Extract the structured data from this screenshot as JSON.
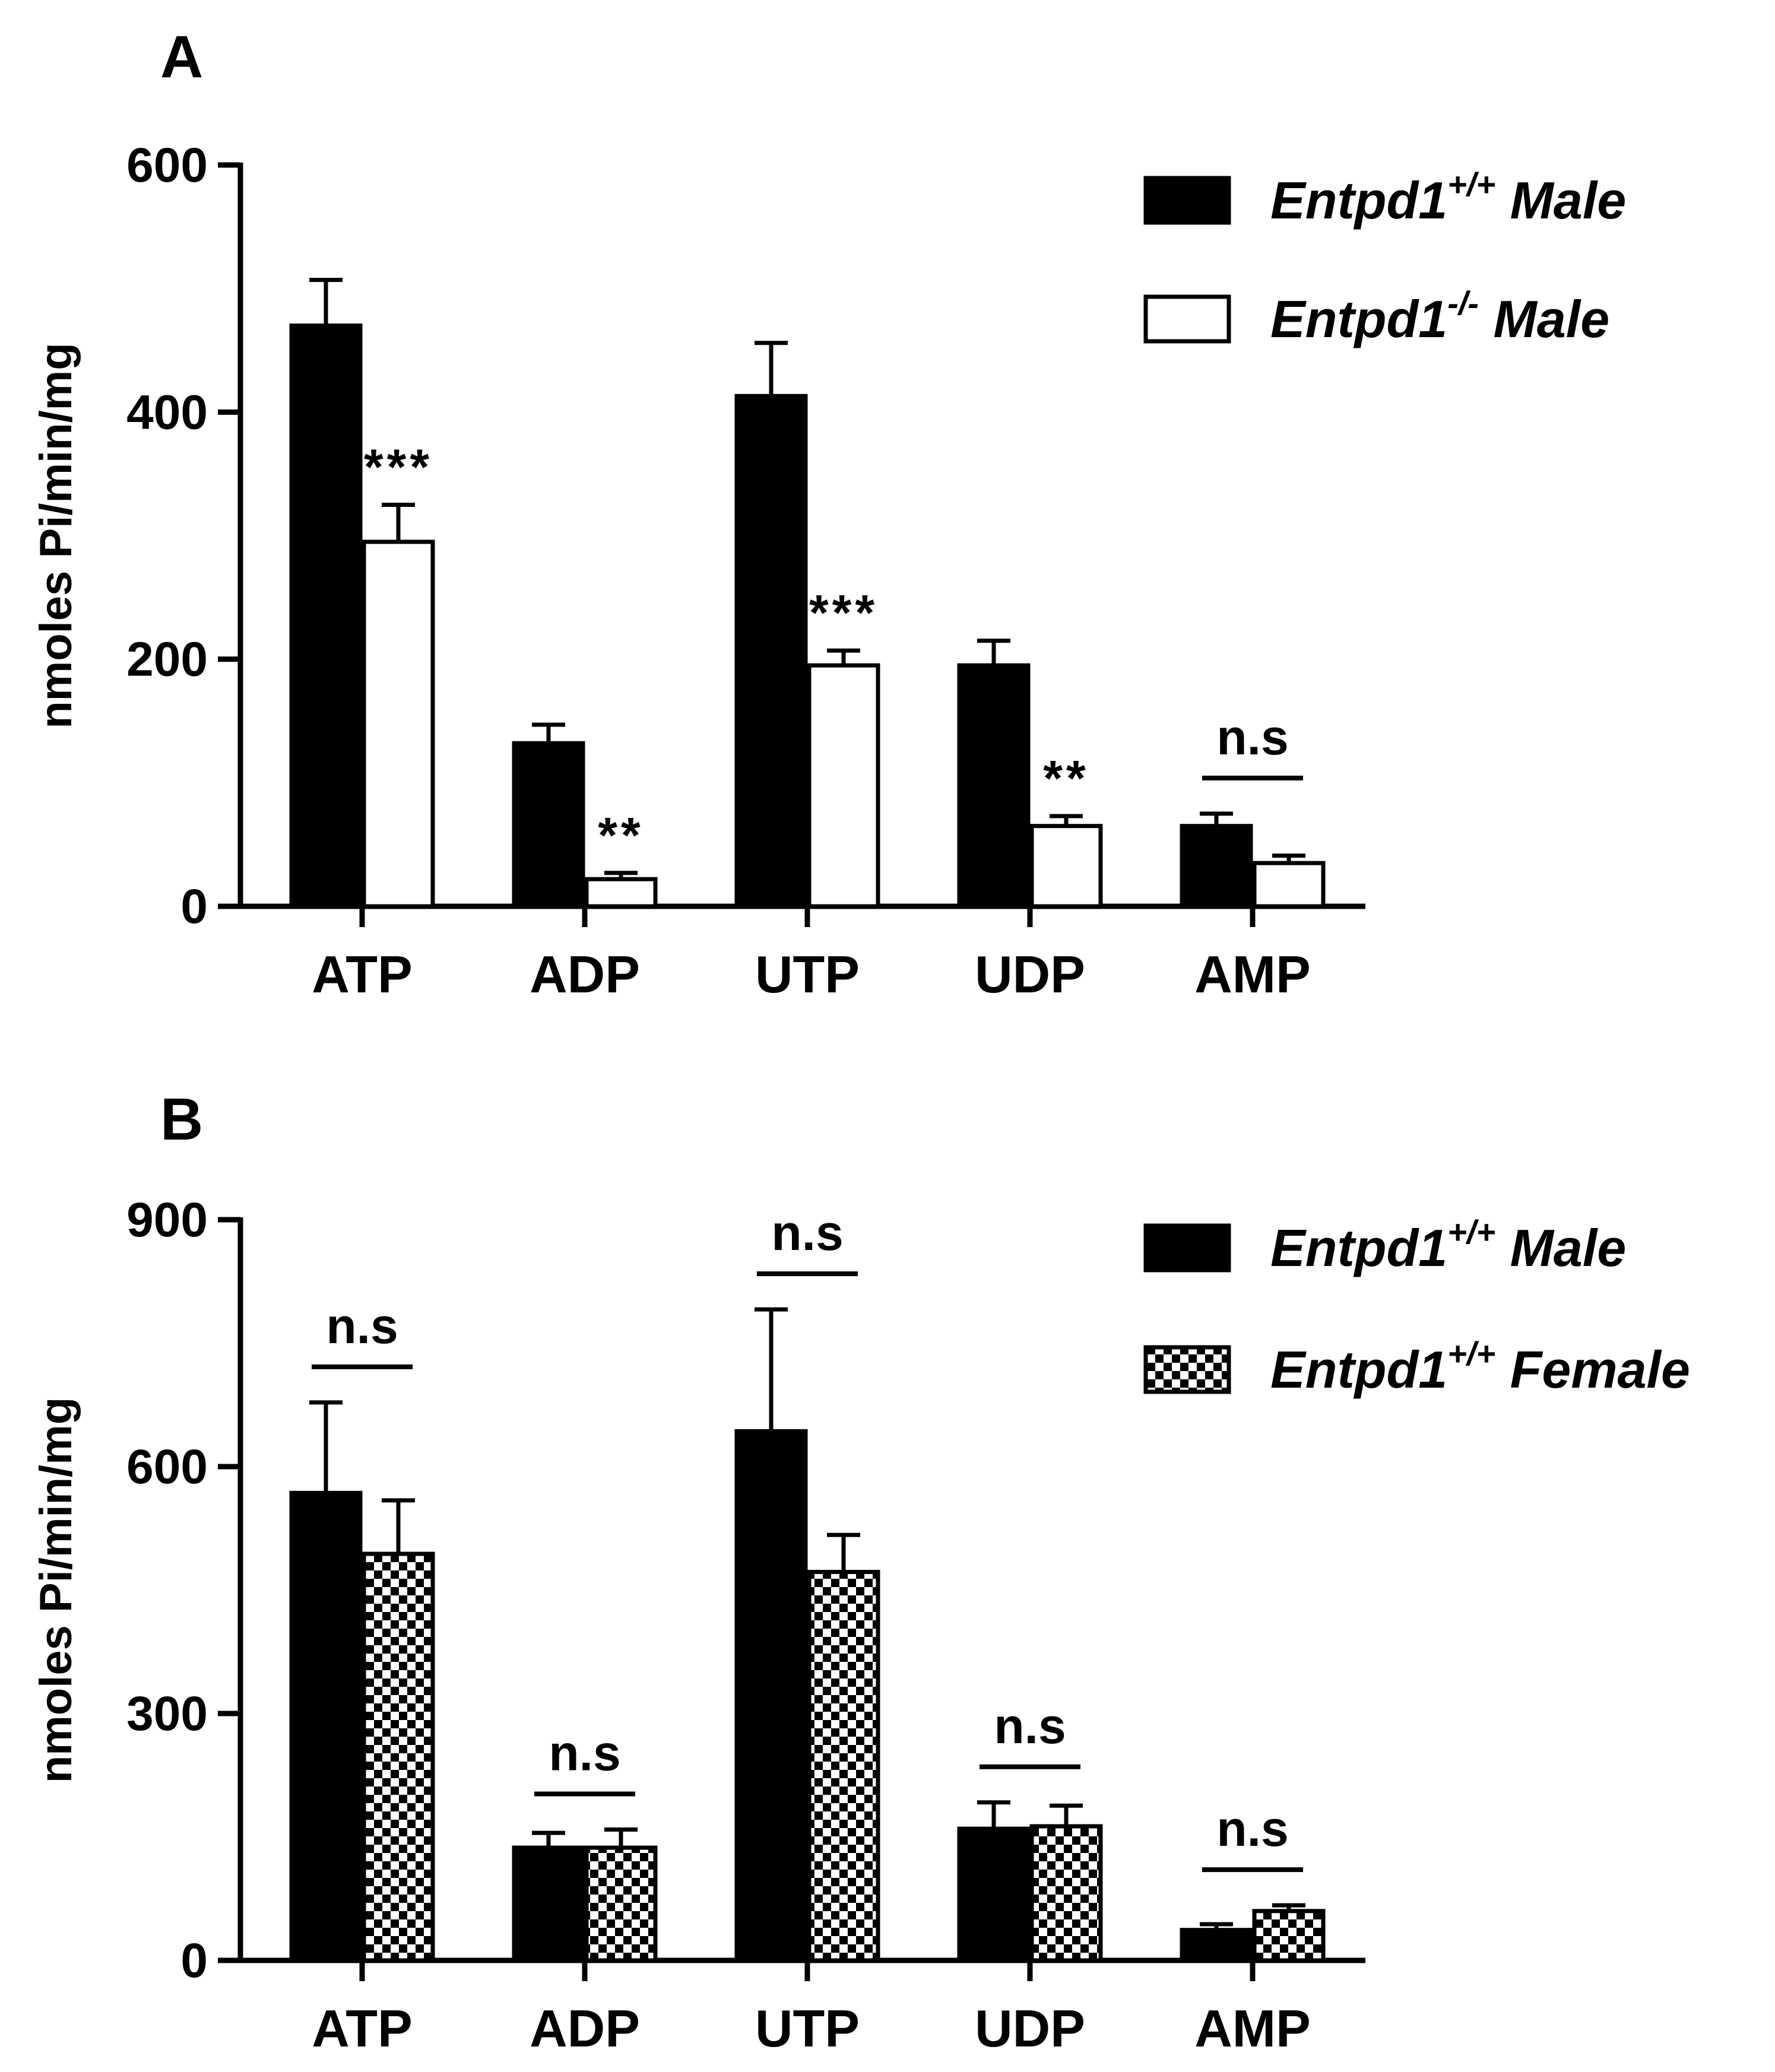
{
  "chart_data": [
    {
      "type": "bar",
      "panel_label": "A",
      "categories": [
        "ATP",
        "ADP",
        "UTP",
        "UDP",
        "AMP"
      ],
      "ylabel": "nmoles Pi/min/mg",
      "ylim": [
        0,
        600
      ],
      "yticks": [
        "0",
        "200",
        "400",
        "600"
      ],
      "series": [
        {
          "name": "Entpd1+/+ Male",
          "legend_base": "Entpd1",
          "legend_sup": "+/+",
          "legend_suffix": "Male",
          "style": "black",
          "values": [
            470,
            132,
            413,
            195,
            65
          ],
          "errors": [
            37,
            15,
            43,
            20,
            10
          ]
        },
        {
          "name": "Entpd1-/- Male",
          "legend_base": "Entpd1",
          "legend_sup": "-/-",
          "legend_suffix": "Male",
          "style": "white",
          "values": [
            295,
            22,
            195,
            65,
            35
          ],
          "errors": [
            30,
            5,
            12,
            8,
            6
          ]
        }
      ],
      "annotations": [
        {
          "category": "ATP",
          "text": "***",
          "bar": true
        },
        {
          "category": "ADP",
          "text": "**",
          "bar": true
        },
        {
          "category": "UTP",
          "text": "***",
          "bar": true
        },
        {
          "category": "UDP",
          "text": "**",
          "bar": true
        },
        {
          "category": "AMP",
          "text": "n.s",
          "bar": false
        }
      ]
    },
    {
      "type": "bar",
      "panel_label": "B",
      "categories": [
        "ATP",
        "ADP",
        "UTP",
        "UDP",
        "AMP"
      ],
      "ylabel": "nmoles Pi/min/mg",
      "ylim": [
        0,
        900
      ],
      "yticks": [
        "0",
        "300",
        "600",
        "900"
      ],
      "series": [
        {
          "name": "Entpd1+/+ Male",
          "legend_base": "Entpd1",
          "legend_sup": "+/+",
          "legend_suffix": "Male",
          "style": "black",
          "values": [
            568,
            137,
            643,
            160,
            37
          ],
          "errors": [
            110,
            18,
            148,
            32,
            7
          ]
        },
        {
          "name": "Entpd1+/+ Female",
          "legend_base": "Entpd1",
          "legend_sup": "+/+",
          "legend_suffix": "Female",
          "style": "checker",
          "values": [
            494,
            137,
            472,
            163,
            60
          ],
          "errors": [
            65,
            22,
            45,
            25,
            7
          ]
        }
      ],
      "annotations": [
        {
          "category": "ATP",
          "text": "n.s",
          "bar": false
        },
        {
          "category": "ADP",
          "text": "n.s",
          "bar": false
        },
        {
          "category": "UTP",
          "text": "n.s",
          "bar": false
        },
        {
          "category": "UDP",
          "text": "n.s",
          "bar": false
        },
        {
          "category": "AMP",
          "text": "n.s",
          "bar": false
        }
      ]
    }
  ]
}
